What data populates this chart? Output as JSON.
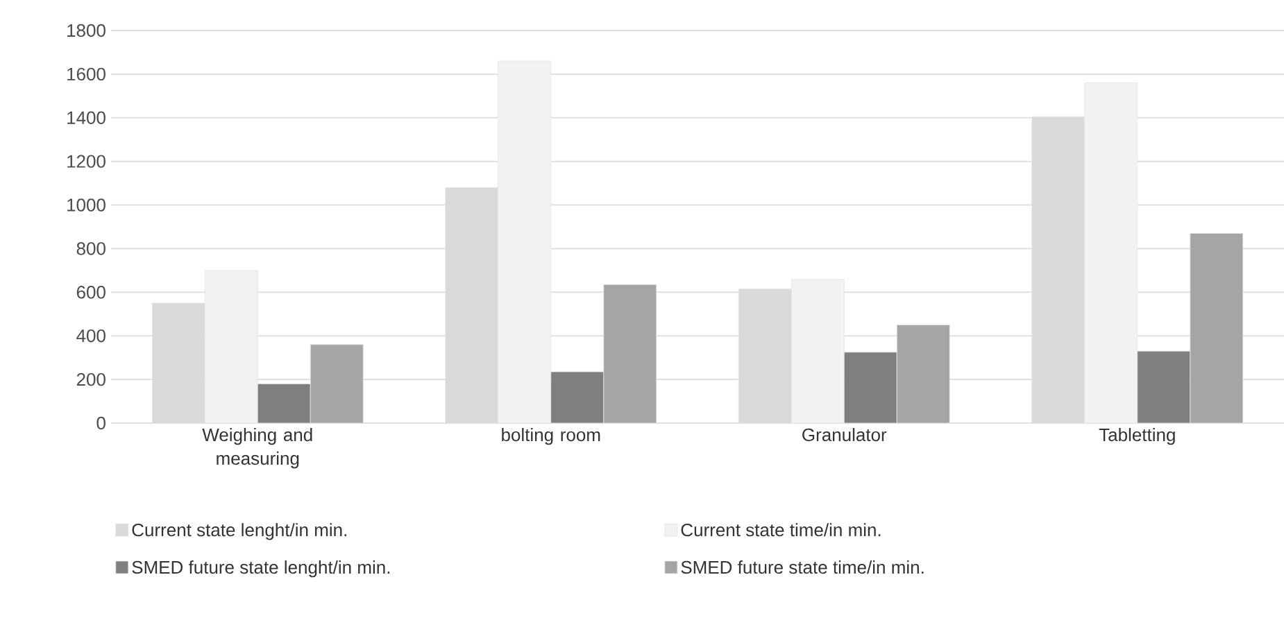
{
  "chart_data": {
    "type": "bar",
    "categories": [
      "Weighing and measuring",
      "bolting room",
      "Granulator",
      "Tabletting"
    ],
    "series": [
      {
        "name": "Current state lenght/in min.",
        "color": "#d9d9d9",
        "values": [
          550,
          1080,
          615,
          1405
        ]
      },
      {
        "name": "Current state time/in min.",
        "color": "#f2f2f2",
        "values": [
          700,
          1660,
          660,
          1560
        ]
      },
      {
        "name": "SMED future state lenght/in min.",
        "color": "#7f7f7f",
        "values": [
          180,
          235,
          325,
          330
        ]
      },
      {
        "name": "SMED future state time/in min.",
        "color": "#a5a5a5",
        "values": [
          360,
          635,
          450,
          870
        ]
      }
    ],
    "ylim": [
      0,
      1800
    ],
    "yticks": [
      0,
      200,
      400,
      600,
      800,
      1000,
      1200,
      1400,
      1600,
      1800
    ],
    "grid": "y",
    "legend": "bottom"
  }
}
